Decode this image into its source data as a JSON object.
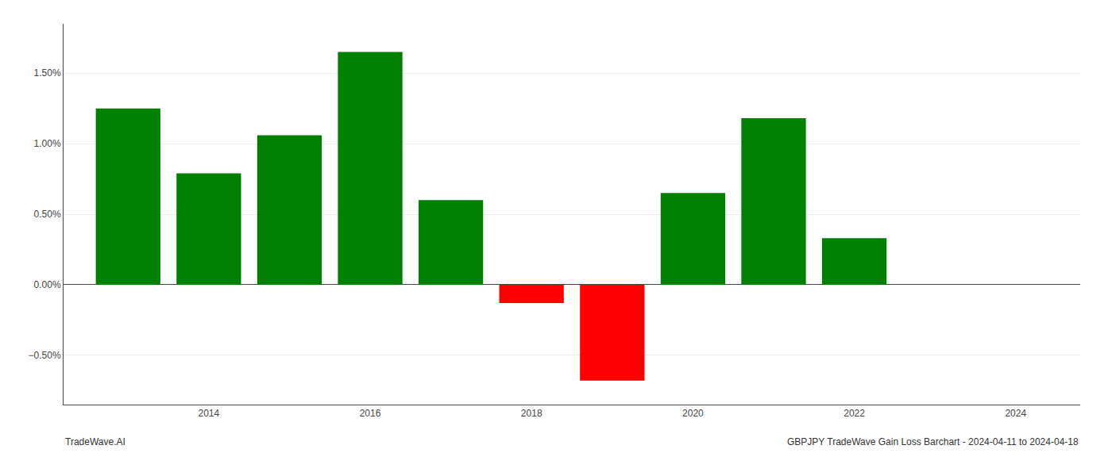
{
  "chart_data": {
    "type": "bar",
    "x": [
      2013,
      2014,
      2015,
      2016,
      2017,
      2018,
      2019,
      2020,
      2021,
      2022
    ],
    "values": [
      1.25,
      0.79,
      1.06,
      1.65,
      0.6,
      -0.13,
      -0.68,
      0.65,
      1.18,
      0.33
    ],
    "colors": [
      "#008000",
      "#008000",
      "#008000",
      "#008000",
      "#008000",
      "#ff0000",
      "#ff0000",
      "#008000",
      "#008000",
      "#008000"
    ],
    "xlim": [
      2012.2,
      2024.8
    ],
    "xticks": [
      2014,
      2016,
      2018,
      2020,
      2022,
      2024
    ],
    "ylim": [
      -0.85,
      1.85
    ],
    "yticks": [
      {
        "value": -0.5,
        "label": "−0.50%"
      },
      {
        "value": 0.0,
        "label": "0.00%"
      },
      {
        "value": 0.5,
        "label": "0.50%"
      },
      {
        "value": 1.0,
        "label": "1.00%"
      },
      {
        "value": 1.5,
        "label": "1.50%"
      }
    ],
    "grid": true,
    "annotations": [
      "TradeWave.AI",
      "GBPJPY TradeWave Gain Loss Barchart - 2024-04-11 to 2024-04-18"
    ]
  }
}
